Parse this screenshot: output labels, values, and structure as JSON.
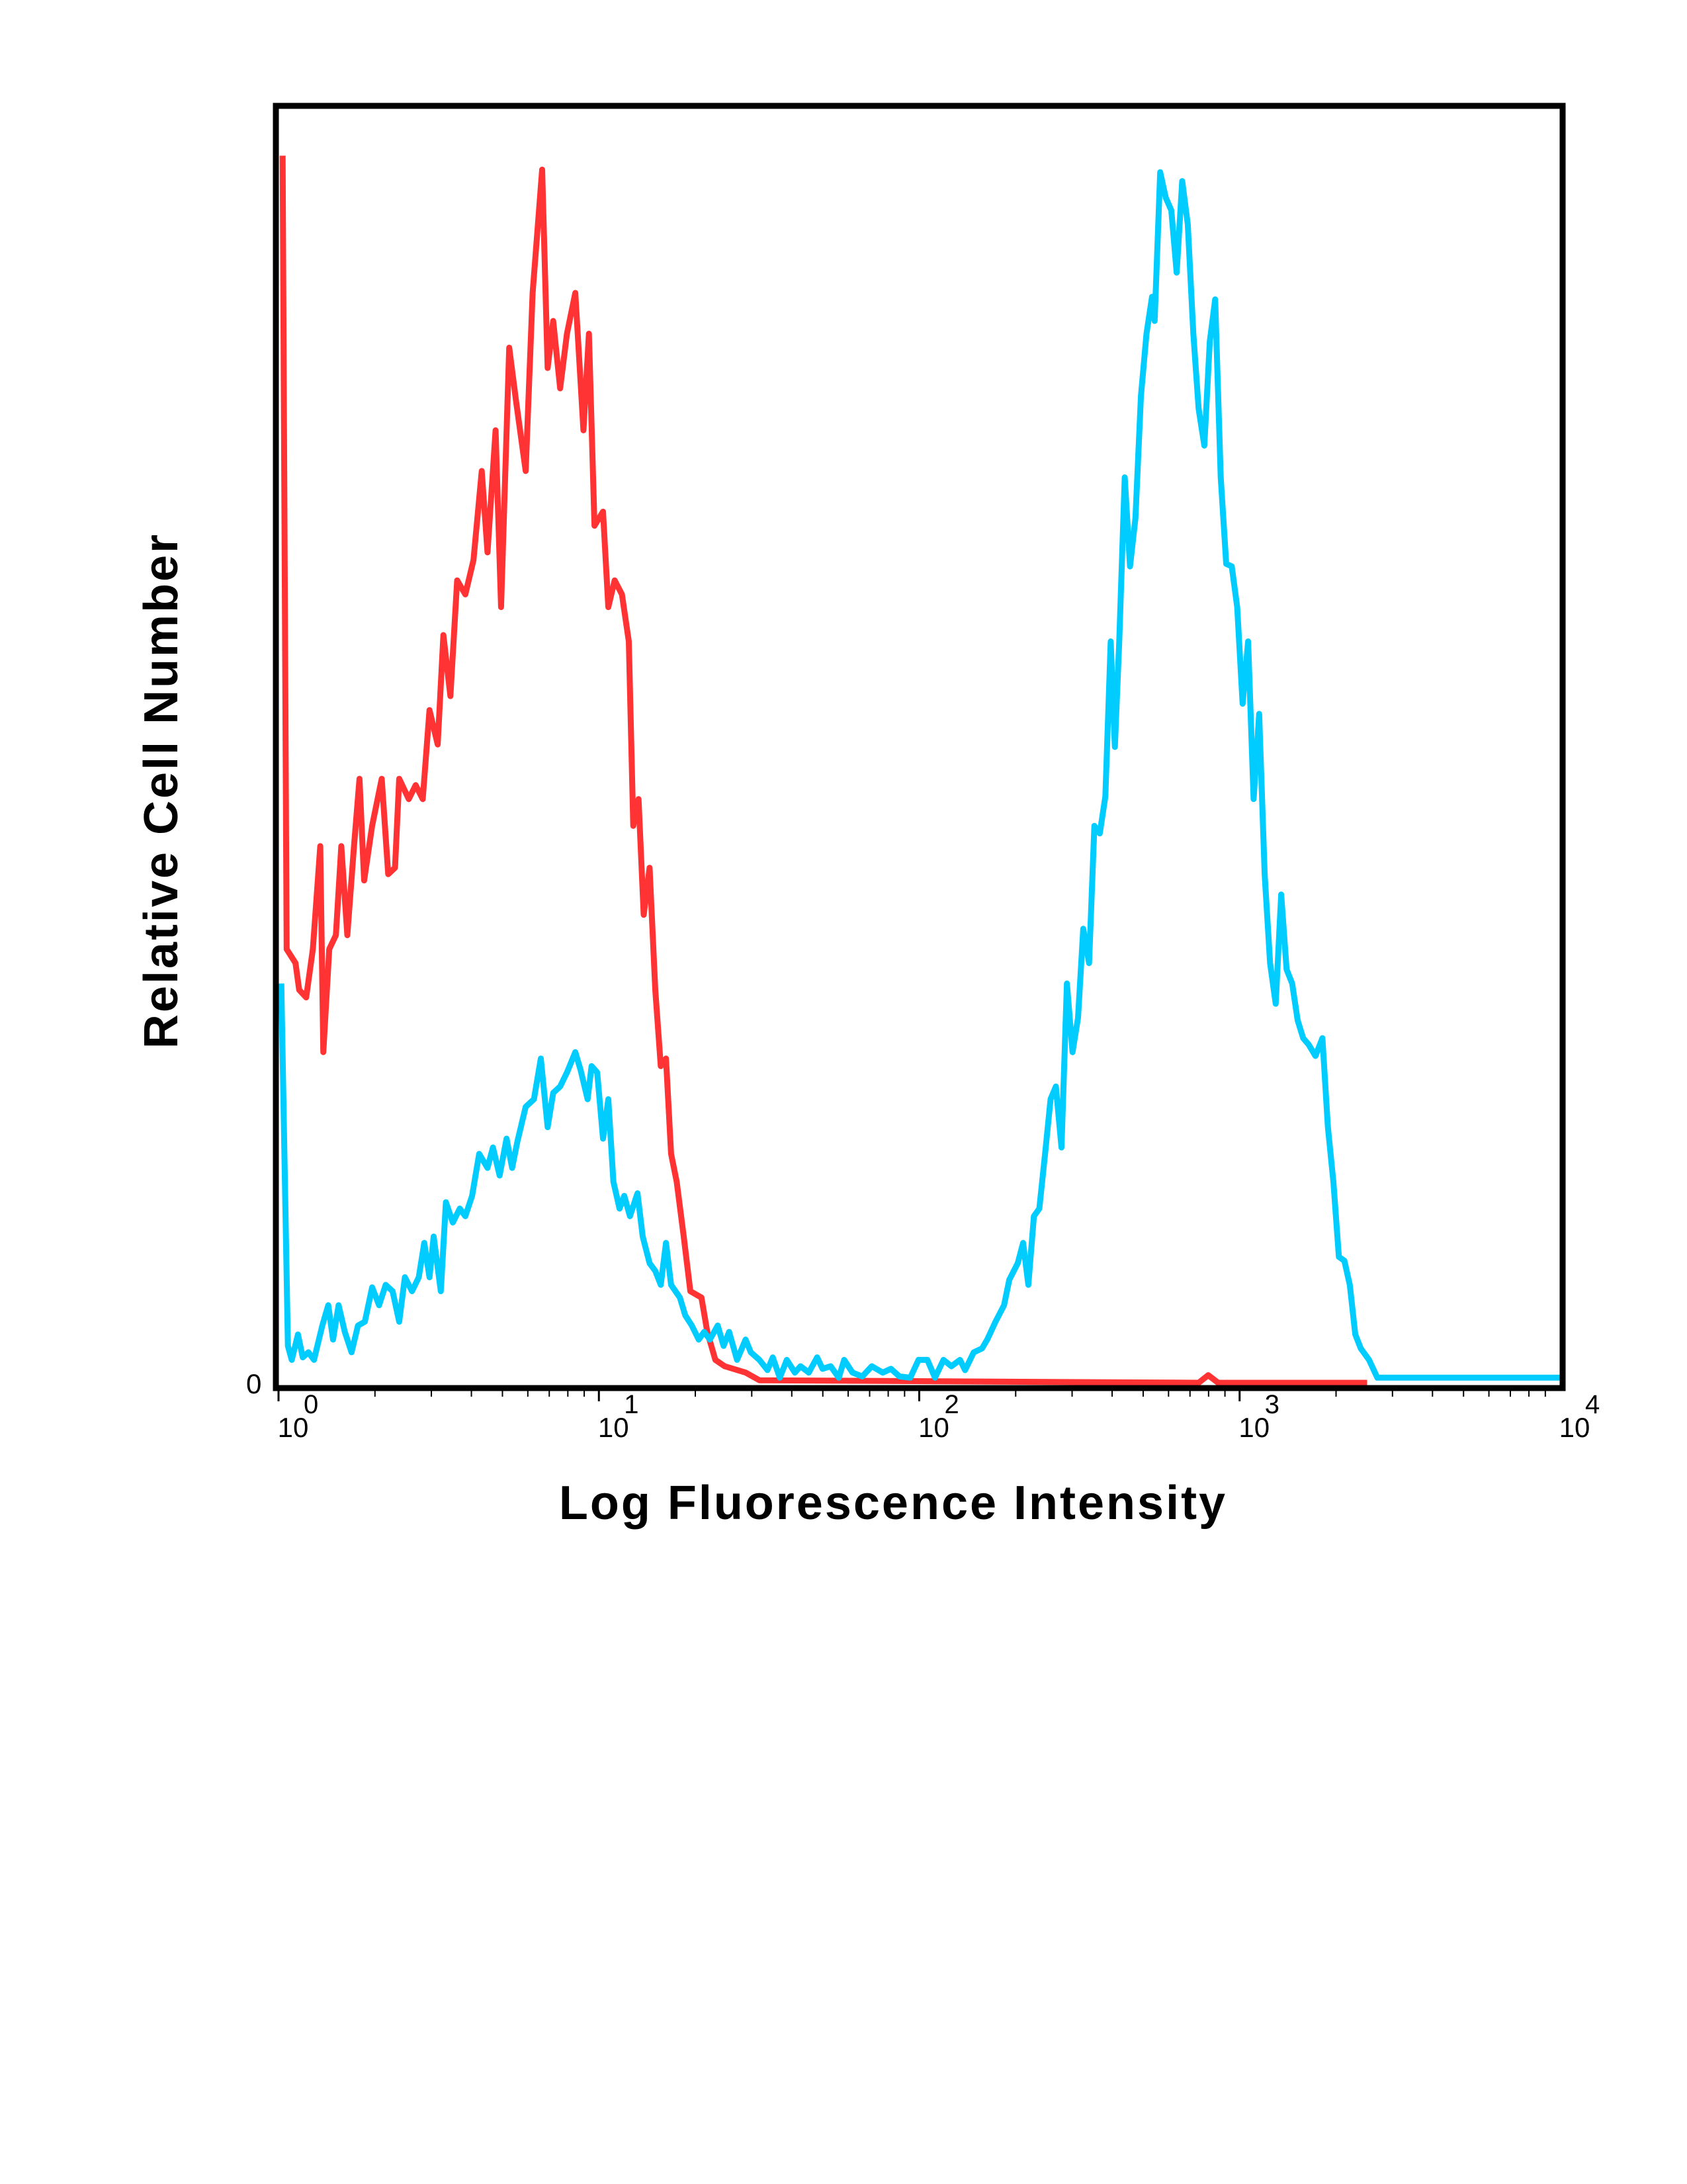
{
  "chart_data": {
    "type": "line",
    "title": "",
    "xlabel": "Log Fluorescence Intensity",
    "ylabel": "Relative Cell Number",
    "x_scale": "log",
    "xlim": [
      1,
      10000
    ],
    "ylim": [
      0,
      100
    ],
    "grid": false,
    "legend": "none",
    "x_ticks": [
      {
        "value": 1,
        "base": "10",
        "exp": "0"
      },
      {
        "value": 10,
        "base": "10",
        "exp": "1"
      },
      {
        "value": 100,
        "base": "10",
        "exp": "2"
      },
      {
        "value": 1000,
        "base": "10",
        "exp": "3"
      },
      {
        "value": 10000,
        "base": "10",
        "exp": "4"
      }
    ],
    "y_ticks": [
      {
        "value": 0,
        "label": "0"
      }
    ],
    "series": [
      {
        "color": "#ff3333",
        "x": [
          1.03,
          1.06,
          1.13,
          1.16,
          1.22,
          1.28,
          1.35,
          1.38,
          1.44,
          1.51,
          1.57,
          1.64,
          1.72,
          1.79,
          1.85,
          1.96,
          2.1,
          2.2,
          2.31,
          2.38,
          2.55,
          2.68,
          2.82,
          2.96,
          3.14,
          3.27,
          3.44,
          3.61,
          3.83,
          4.06,
          4.31,
          4.49,
          4.76,
          4.95,
          5.25,
          5.52,
          5.91,
          6.21,
          6.65,
          6.92,
          7.2,
          7.57,
          7.95,
          8.44,
          8.95,
          9.31,
          9.69,
          10.3,
          10.7,
          11.2,
          11.8,
          12.4,
          12.8,
          13.3,
          13.8,
          14.4,
          15.0,
          15.6,
          16.2,
          16.8,
          17.5,
          18.4,
          19.3,
          20.9,
          21.8,
          23.1,
          24.7,
          28.7,
          31.7,
          745,
          798,
          857,
          2500
        ],
        "y": [
          96.5,
          34.1,
          33.0,
          30.9,
          30.3,
          34.1,
          42.2,
          26.0,
          34.1,
          35.2,
          42.2,
          35.2,
          42.2,
          47.5,
          39.5,
          43.8,
          47.5,
          40.0,
          40.5,
          47.5,
          45.9,
          47.0,
          45.9,
          52.9,
          50.2,
          58.8,
          54.0,
          63.1,
          62.0,
          64.7,
          71.7,
          65.3,
          74.9,
          61.0,
          81.4,
          77.1,
          71.7,
          85.7,
          95.4,
          79.8,
          83.5,
          78.2,
          82.5,
          85.7,
          74.9,
          82.5,
          67.4,
          68.5,
          61.0,
          63.1,
          62.0,
          58.3,
          43.8,
          45.9,
          36.8,
          40.5,
          30.9,
          24.9,
          25.5,
          18.0,
          15.8,
          11.5,
          7.2,
          6.7,
          4.0,
          1.8,
          1.3,
          0.8,
          0.2,
          0,
          0.6,
          0,
          0
        ]
      },
      {
        "color": "#00ccff",
        "x": [
          1.02,
          1.07,
          1.1,
          1.15,
          1.19,
          1.24,
          1.29,
          1.37,
          1.43,
          1.48,
          1.54,
          1.61,
          1.69,
          1.77,
          1.86,
          1.96,
          2.06,
          2.16,
          2.27,
          2.38,
          2.48,
          2.61,
          2.74,
          2.85,
          2.96,
          3.05,
          3.21,
          3.33,
          3.5,
          3.68,
          3.83,
          4.02,
          4.23,
          4.49,
          4.67,
          4.9,
          5.15,
          5.36,
          5.57,
          5.91,
          6.27,
          6.59,
          6.92,
          7.2,
          7.57,
          7.95,
          8.44,
          8.77,
          9.22,
          9.49,
          9.88,
          10.3,
          10.7,
          11.1,
          11.6,
          12.0,
          12.5,
          13.2,
          13.7,
          14.4,
          15.0,
          15.6,
          16.2,
          16.8,
          17.9,
          18.6,
          19.5,
          20.5,
          21.3,
          22.2,
          23.5,
          24.5,
          25.5,
          27.0,
          28.7,
          29.8,
          31.7,
          33.6,
          34.9,
          36.7,
          38.6,
          40.9,
          42.6,
          45.2,
          48.0,
          49.9,
          52.9,
          56.1,
          58.3,
          61.9,
          66.4,
          71.1,
          76.9,
          81.6,
          86.7,
          93.8,
          99.5,
          106,
          112,
          119,
          126,
          134,
          139,
          148,
          157,
          163,
          173,
          184,
          191,
          203,
          211,
          219,
          228,
          237,
          247,
          257,
          267,
          278,
          289,
          301,
          313,
          325,
          339,
          352,
          366,
          381,
          396,
          408,
          421,
          438,
          455,
          473,
          492,
          512,
          533,
          543,
          565,
          588,
          612,
          636,
          662,
          689,
          717,
          745,
          776,
          807,
          839,
          873,
          908,
          945,
          983,
          1022,
          1063,
          1106,
          1151,
          1197,
          1245,
          1296,
          1348,
          1402,
          1459,
          1518,
          1579,
          1642,
          1725,
          1813,
          1886,
          1962,
          2041,
          2123,
          2208,
          2297,
          2389,
          2535,
          2690,
          10000
        ],
        "y": [
          31.4,
          2.9,
          1.8,
          3.8,
          2.0,
          2.4,
          1.8,
          4.5,
          6.1,
          3.4,
          6.1,
          4.0,
          2.4,
          4.5,
          4.8,
          7.5,
          6.1,
          7.7,
          7.2,
          4.8,
          8.3,
          7.2,
          8.3,
          11.0,
          8.3,
          11.5,
          7.2,
          14.2,
          12.6,
          13.7,
          13.1,
          14.7,
          18.0,
          16.9,
          18.5,
          16.3,
          19.2,
          16.9,
          19.0,
          21.7,
          22.3,
          25.5,
          20.1,
          22.8,
          23.3,
          24.4,
          26.0,
          24.6,
          22.3,
          24.9,
          24.4,
          19.2,
          22.3,
          15.8,
          13.7,
          14.7,
          13.1,
          14.9,
          11.5,
          9.4,
          8.8,
          7.7,
          11.0,
          7.7,
          6.7,
          5.3,
          4.5,
          3.4,
          4.0,
          3.4,
          4.5,
          2.9,
          4.0,
          1.8,
          3.4,
          2.4,
          1.8,
          1.0,
          2.0,
          0.4,
          1.8,
          0.8,
          1.3,
          0.8,
          2.0,
          1.1,
          1.3,
          0.4,
          1.8,
          0.8,
          0.5,
          1.3,
          0.8,
          1.1,
          0.5,
          0.4,
          1.8,
          1.8,
          0.4,
          1.8,
          1.3,
          1.8,
          1.0,
          2.4,
          2.7,
          3.4,
          4.8,
          6.1,
          8.1,
          9.4,
          11.0,
          7.7,
          13.1,
          13.7,
          18.0,
          22.3,
          23.3,
          18.5,
          31.4,
          26.0,
          28.7,
          35.7,
          33.0,
          43.8,
          43.2,
          46.1,
          58.3,
          50.0,
          58.3,
          71.2,
          64.2,
          68.0,
          77.6,
          82.5,
          85.4,
          83.5,
          95.2,
          93.2,
          92.2,
          87.3,
          94.5,
          91.1,
          82.5,
          76.6,
          73.7,
          81.9,
          85.2,
          71.2,
          64.4,
          64.2,
          61.0,
          53.4,
          58.3,
          45.9,
          52.6,
          40.0,
          33.0,
          29.8,
          38.4,
          32.5,
          31.4,
          28.5,
          27.1,
          26.6,
          25.7,
          27.1,
          20.1,
          15.8,
          9.9,
          9.6,
          7.7,
          3.8,
          2.7,
          1.8,
          0.4,
          0.4
        ]
      }
    ]
  }
}
